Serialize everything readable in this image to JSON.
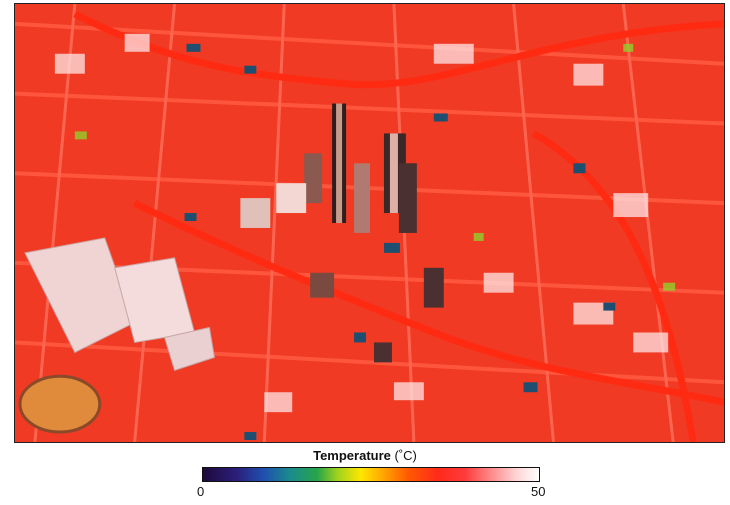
{
  "legend": {
    "title": "Temperature",
    "unit": "(˚C)",
    "min_label": "0",
    "max_label": "50",
    "colors": [
      "#1e0a3c",
      "#2b1f7a",
      "#1f4fb0",
      "#1a8c8c",
      "#27a44a",
      "#9fd21e",
      "#ffe600",
      "#ffa200",
      "#ff5a00",
      "#ff2a1a",
      "#ff3b3b",
      "#ff8c8c",
      "#ffd2d2",
      "#ffffff"
    ]
  },
  "map": {
    "base_color": "#f5301e",
    "hot_color": "#ffffff",
    "cool_color": "#1f4f70"
  }
}
